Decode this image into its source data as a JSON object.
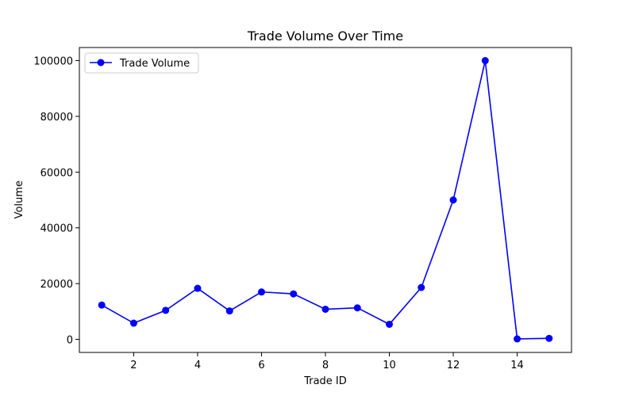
{
  "chart_data": {
    "type": "line",
    "title": "Trade Volume Over Time",
    "xlabel": "Trade ID",
    "ylabel": "Volume",
    "xlim": [
      0.3,
      15.7
    ],
    "ylim": [
      -4700,
      104700
    ],
    "xticks": [
      2,
      4,
      6,
      8,
      10,
      12,
      14
    ],
    "xtick_labels": [
      "2",
      "4",
      "6",
      "8",
      "10",
      "12",
      "14"
    ],
    "yticks": [
      0,
      20000,
      40000,
      60000,
      80000,
      100000
    ],
    "ytick_labels": [
      "0",
      "20000",
      "40000",
      "60000",
      "80000",
      "100000"
    ],
    "grid": false,
    "legend_position": "top-left",
    "x": [
      1,
      2,
      3,
      4,
      5,
      6,
      7,
      8,
      9,
      10,
      11,
      12,
      13,
      14,
      15
    ],
    "series": [
      {
        "name": "Trade Volume",
        "color": "#0000ff",
        "marker": "circle",
        "values": [
          12300,
          5800,
          10400,
          18300,
          10200,
          17000,
          16300,
          10800,
          11300,
          5400,
          18600,
          50000,
          100000,
          150,
          350
        ]
      }
    ]
  }
}
